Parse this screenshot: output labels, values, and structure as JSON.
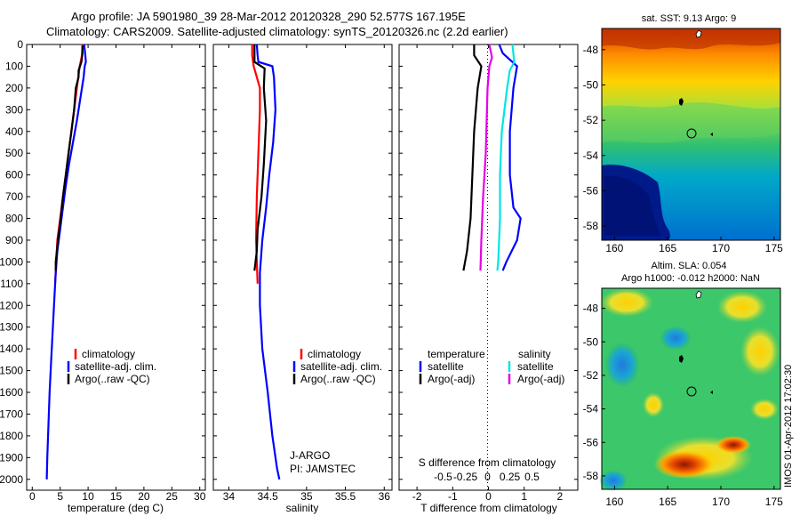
{
  "header": {
    "line1": "Argo profile: JA 5901980_39 28-Mar-2012 20120328_290 52.577S 167.195E",
    "line2": "Climatology: CARS2009. Satellite-adjusted climatology: synTS_20120326.nc (2.2d earlier)"
  },
  "depth_ticks": [
    "0",
    "100",
    "200",
    "300",
    "400",
    "500",
    "600",
    "700",
    "800",
    "900",
    "1000",
    "1100",
    "1200",
    "1300",
    "1400",
    "1500",
    "1600",
    "1700",
    "1800",
    "1900",
    "2000"
  ],
  "colors": {
    "climatology": "#ff0000",
    "satellite": "#0000ff",
    "argo": "#000000",
    "satellite_s": "#00e5e5",
    "argo_adj_s": "#e600e6"
  },
  "chart_data": [
    {
      "type": "line",
      "panel": "temperature",
      "xlabel": "temperature (deg C)",
      "xlim": [
        -1,
        31
      ],
      "xticks": [
        "0",
        "5",
        "10",
        "15",
        "20",
        "25",
        "30"
      ],
      "ylim": [
        0,
        2050
      ],
      "y_reversed": true,
      "legend": [
        "climatology",
        "satellite-adj. clim.",
        "Argo(..raw -QC)"
      ],
      "series": [
        {
          "name": "climatology",
          "color": "#ff0000",
          "points": [
            [
              9.0,
              0
            ],
            [
              8.9,
              50
            ],
            [
              8.5,
              100
            ],
            [
              8.0,
              200
            ],
            [
              7.5,
              300
            ],
            [
              7.0,
              400
            ],
            [
              6.5,
              500
            ],
            [
              6.0,
              600
            ],
            [
              5.5,
              700
            ],
            [
              5.0,
              800
            ],
            [
              4.5,
              900
            ],
            [
              4.3,
              1000
            ],
            [
              4.1,
              1100
            ]
          ]
        },
        {
          "name": "satellite-adj. clim.",
          "color": "#0000ff",
          "points": [
            [
              9.3,
              0
            ],
            [
              9.5,
              50
            ],
            [
              9.6,
              80
            ],
            [
              9.4,
              100
            ],
            [
              9.2,
              150
            ],
            [
              8.6,
              250
            ],
            [
              8.0,
              350
            ],
            [
              7.3,
              450
            ],
            [
              6.6,
              550
            ],
            [
              6.0,
              650
            ],
            [
              5.5,
              750
            ],
            [
              5.0,
              850
            ],
            [
              4.5,
              950
            ],
            [
              4.2,
              1050
            ],
            [
              4.0,
              1150
            ],
            [
              3.7,
              1300
            ],
            [
              3.4,
              1450
            ],
            [
              3.1,
              1600
            ],
            [
              2.9,
              1750
            ],
            [
              2.7,
              1900
            ],
            [
              2.6,
              2000
            ]
          ]
        },
        {
          "name": "Argo(..raw -QC)",
          "color": "#000000",
          "points": [
            [
              9.0,
              5
            ],
            [
              9.0,
              40
            ],
            [
              8.8,
              80
            ],
            [
              8.3,
              120
            ],
            [
              8.3,
              150
            ],
            [
              7.8,
              200
            ],
            [
              7.5,
              300
            ],
            [
              7.0,
              400
            ],
            [
              6.5,
              500
            ],
            [
              6.0,
              600
            ],
            [
              5.5,
              700
            ],
            [
              5.1,
              800
            ],
            [
              4.6,
              900
            ],
            [
              4.2,
              1000
            ],
            [
              4.2,
              1040
            ]
          ]
        }
      ]
    },
    {
      "type": "line",
      "panel": "salinity",
      "xlabel": "salinity",
      "xlim": [
        33.8,
        36.1
      ],
      "xticks": [
        "34",
        "34.5",
        "35",
        "35.5",
        "36"
      ],
      "ylim": [
        0,
        2050
      ],
      "y_reversed": true,
      "legend": [
        "climatology",
        "satellite-adj. clim.",
        "Argo(..raw -QC)"
      ],
      "annotation": [
        "J-ARGO",
        "PI: JAMSTEC"
      ],
      "series": [
        {
          "name": "climatology",
          "color": "#ff0000",
          "points": [
            [
              34.3,
              0
            ],
            [
              34.3,
              50
            ],
            [
              34.32,
              100
            ],
            [
              34.36,
              150
            ],
            [
              34.4,
              200
            ],
            [
              34.4,
              300
            ],
            [
              34.38,
              500
            ],
            [
              34.36,
              700
            ],
            [
              34.35,
              900
            ],
            [
              34.36,
              1000
            ],
            [
              34.37,
              1100
            ]
          ]
        },
        {
          "name": "satellite-adj. clim.",
          "color": "#0000ff",
          "points": [
            [
              34.36,
              0
            ],
            [
              34.37,
              50
            ],
            [
              34.38,
              80
            ],
            [
              34.56,
              100
            ],
            [
              34.58,
              150
            ],
            [
              34.6,
              300
            ],
            [
              34.57,
              450
            ],
            [
              34.52,
              600
            ],
            [
              34.48,
              750
            ],
            [
              34.43,
              900
            ],
            [
              34.4,
              1050
            ],
            [
              34.4,
              1200
            ],
            [
              34.43,
              1400
            ],
            [
              34.5,
              1600
            ],
            [
              34.56,
              1800
            ],
            [
              34.62,
              1950
            ],
            [
              34.65,
              2000
            ]
          ]
        },
        {
          "name": "Argo(..raw -QC)",
          "color": "#000000",
          "points": [
            [
              34.33,
              0
            ],
            [
              34.33,
              40
            ],
            [
              34.33,
              80
            ],
            [
              34.46,
              110
            ],
            [
              34.45,
              200
            ],
            [
              34.48,
              350
            ],
            [
              34.45,
              550
            ],
            [
              34.42,
              700
            ],
            [
              34.37,
              850
            ],
            [
              34.36,
              950
            ],
            [
              34.33,
              1040
            ]
          ]
        }
      ]
    },
    {
      "type": "line",
      "panel": "difference",
      "xlabel": "T difference from climatology",
      "xlabel_top": "S difference from climatology",
      "xlim": [
        -2.5,
        2.5
      ],
      "xticks": [
        "-2",
        "-1",
        "0",
        "1",
        "2"
      ],
      "xticks_top": [
        "-0.5",
        "-0.25",
        "0",
        "0.25",
        "0.5"
      ],
      "ylim": [
        0,
        2050
      ],
      "y_reversed": true,
      "legend_titles": [
        "temperature",
        "salinity"
      ],
      "legend_temperature": [
        "satellite",
        "Argo(-adj)"
      ],
      "legend_salinity": [
        "satellite",
        "Argo(-adj)"
      ],
      "series": [
        {
          "name": "temperature satellite",
          "color": "#0000ff",
          "points": [
            [
              0.3,
              0
            ],
            [
              0.4,
              40
            ],
            [
              0.8,
              100
            ],
            [
              0.7,
              200
            ],
            [
              0.6,
              400
            ],
            [
              0.6,
              600
            ],
            [
              0.7,
              750
            ],
            [
              0.9,
              800
            ],
            [
              0.8,
              900
            ],
            [
              0.5,
              1000
            ],
            [
              0.4,
              1040
            ]
          ]
        },
        {
          "name": "temperature Argo(-adj)",
          "color": "#000000",
          "points": [
            [
              -0.4,
              0
            ],
            [
              -0.4,
              50
            ],
            [
              -0.2,
              100
            ],
            [
              -0.3,
              200
            ],
            [
              -0.4,
              400
            ],
            [
              -0.45,
              600
            ],
            [
              -0.5,
              800
            ],
            [
              -0.6,
              950
            ],
            [
              -0.7,
              1040
            ]
          ]
        },
        {
          "name": "salinity satellite",
          "color": "#00e5e5",
          "points": [
            [
              0.28,
              0
            ],
            [
              0.3,
              80
            ],
            [
              0.25,
              120
            ],
            [
              0.22,
              200
            ],
            [
              0.16,
              400
            ],
            [
              0.14,
              600
            ],
            [
              0.14,
              800
            ],
            [
              0.12,
              1000
            ],
            [
              0.11,
              1040
            ]
          ]
        },
        {
          "name": "salinity Argo(-adj)",
          "color": "#e600e6",
          "points": [
            [
              0.02,
              0
            ],
            [
              0.05,
              60
            ],
            [
              0.02,
              100
            ],
            [
              0.0,
              200
            ],
            [
              -0.02,
              500
            ],
            [
              -0.05,
              700
            ],
            [
              -0.07,
              900
            ],
            [
              -0.08,
              1040
            ]
          ]
        }
      ]
    },
    {
      "type": "heatmap",
      "panel": "sat-sst-map",
      "title": "sat. SST: 9.13 Argo: 9",
      "xticks": [
        "160",
        "165",
        "170",
        "175"
      ],
      "yticks": [
        "-48",
        "-50",
        "-52",
        "-54",
        "-56",
        "-58"
      ],
      "xlim": [
        158.8,
        175.6
      ],
      "ylim": [
        -58.8,
        -46.8
      ]
    },
    {
      "type": "heatmap",
      "panel": "altim-sla-map",
      "title_line1": "Altim. SLA: 0.054",
      "title_line2": "Argo h1000: -0.012 h2000: NaN",
      "xticks": [
        "160",
        "165",
        "170",
        "175"
      ],
      "yticks": [
        "-48",
        "-50",
        "-52",
        "-54",
        "-56",
        "-58"
      ],
      "xlim": [
        158.8,
        175.6
      ],
      "ylim": [
        -58.8,
        -46.8
      ]
    }
  ],
  "footer_stamp": "IMOS 01-Apr-2012 17:02:30"
}
